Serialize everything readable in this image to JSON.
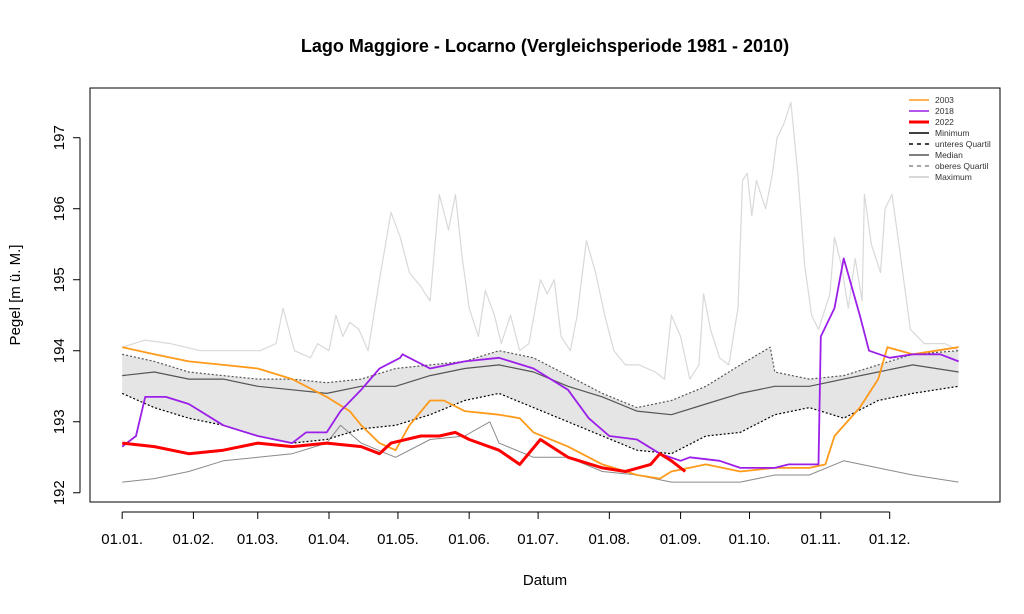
{
  "chart_data": {
    "type": "line",
    "title": "Lago Maggiore - Locarno (Vergleichsperiode 1981 - 2010)",
    "xlabel": "Datum",
    "ylabel": "Pegel [m ü. M.]",
    "x_unit": "day of year",
    "xlim": [
      -13,
      383
    ],
    "ylim": [
      191.87,
      197.7
    ],
    "yticks": [
      192,
      193,
      194,
      195,
      196,
      197
    ],
    "xticks": [
      {
        "day": 1,
        "label": "01.01."
      },
      {
        "day": 32,
        "label": "01.02."
      },
      {
        "day": 60,
        "label": "01.03."
      },
      {
        "day": 91,
        "label": "01.04."
      },
      {
        "day": 121,
        "label": "01.05."
      },
      {
        "day": 152,
        "label": "01.06."
      },
      {
        "day": 182,
        "label": "01.07."
      },
      {
        "day": 213,
        "label": "01.08."
      },
      {
        "day": 244,
        "label": "01.09."
      },
      {
        "day": 274,
        "label": "01.10."
      },
      {
        "day": 305,
        "label": "01.11."
      },
      {
        "day": 335,
        "label": "01.12."
      }
    ],
    "legend_position": "top-right",
    "legend": [
      {
        "label": "2003",
        "color": "#ff9a1a",
        "style": "solid",
        "width": 1.6
      },
      {
        "label": "2018",
        "color": "#9b1fe8",
        "style": "solid",
        "width": 1.6
      },
      {
        "label": "2022",
        "color": "#ff0000",
        "style": "solid",
        "width": 3
      },
      {
        "label": "Minimum",
        "color": "#000000",
        "style": "solid",
        "width": 1.5
      },
      {
        "label": "unteres Quartil",
        "color": "#000000",
        "style": "dashed",
        "width": 1.5
      },
      {
        "label": "Median",
        "color": "#555555",
        "style": "solid",
        "width": 1.5
      },
      {
        "label": "oberes Quartil",
        "color": "#888888",
        "style": "dashed",
        "width": 1.5
      },
      {
        "label": "Maximum",
        "color": "#cccccc",
        "style": "solid",
        "width": 1.5
      }
    ],
    "band_color": "#e5e5e5",
    "series": {
      "maximum": {
        "color": "#d9d9d9",
        "days": [
          1,
          11,
          22,
          35,
          48,
          61,
          68,
          71,
          76,
          83,
          86,
          91,
          94,
          97,
          100,
          104,
          108,
          113,
          118,
          122,
          126,
          131,
          135,
          139,
          143,
          146,
          149,
          152,
          156,
          159,
          163,
          166,
          170,
          174,
          178,
          183,
          186,
          189,
          192,
          196,
          199,
          203,
          207,
          211,
          215,
          220,
          226,
          233,
          237,
          240,
          244,
          248,
          252,
          254,
          257,
          261,
          265,
          269,
          271,
          273,
          275,
          277,
          281,
          284,
          286,
          289,
          292,
          295,
          298,
          301,
          304,
          309,
          311,
          314,
          317,
          320,
          323,
          324,
          327,
          331,
          333,
          336,
          339,
          344,
          350,
          359,
          365
        ],
        "values": [
          194.05,
          194.15,
          194.1,
          194.0,
          194.0,
          194.0,
          194.1,
          194.6,
          194.0,
          193.9,
          194.1,
          194.0,
          194.5,
          194.2,
          194.4,
          194.3,
          194.0,
          195.0,
          195.95,
          195.6,
          195.1,
          194.9,
          194.7,
          196.2,
          195.7,
          196.2,
          195.3,
          194.6,
          194.2,
          194.85,
          194.5,
          194.1,
          194.5,
          194.0,
          194.1,
          195.0,
          194.8,
          195.0,
          194.2,
          194.0,
          194.5,
          195.55,
          195.1,
          194.5,
          194.0,
          193.8,
          193.8,
          193.7,
          193.6,
          194.5,
          194.2,
          193.6,
          193.8,
          194.8,
          194.3,
          193.9,
          193.8,
          194.6,
          196.4,
          196.5,
          195.9,
          196.4,
          196.0,
          196.5,
          197.0,
          197.2,
          197.5,
          196.5,
          195.2,
          194.5,
          194.3,
          194.8,
          195.6,
          195.2,
          194.6,
          195.3,
          194.7,
          196.2,
          195.5,
          195.1,
          196.0,
          196.2,
          195.5,
          194.3,
          194.1,
          194.1,
          194.0
        ]
      },
      "upper_quartile": {
        "color": "#555555",
        "days": [
          1,
          15,
          30,
          45,
          60,
          75,
          90,
          105,
          120,
          135,
          150,
          165,
          180,
          195,
          210,
          225,
          240,
          255,
          270,
          283,
          285,
          300,
          315,
          330,
          345,
          365
        ],
        "values": [
          193.95,
          193.85,
          193.7,
          193.65,
          193.6,
          193.6,
          193.55,
          193.6,
          193.75,
          193.8,
          193.85,
          194.0,
          193.9,
          193.65,
          193.4,
          193.2,
          193.3,
          193.5,
          193.8,
          194.05,
          193.7,
          193.6,
          193.65,
          193.8,
          193.95,
          194.0
        ]
      },
      "median": {
        "color": "#555555",
        "days": [
          1,
          15,
          30,
          45,
          60,
          75,
          90,
          105,
          120,
          135,
          150,
          165,
          180,
          195,
          210,
          225,
          240,
          255,
          270,
          285,
          300,
          315,
          330,
          345,
          365
        ],
        "values": [
          193.65,
          193.7,
          193.6,
          193.6,
          193.5,
          193.45,
          193.4,
          193.5,
          193.5,
          193.65,
          193.75,
          193.8,
          193.7,
          193.5,
          193.35,
          193.15,
          193.1,
          193.25,
          193.4,
          193.5,
          193.5,
          193.6,
          193.7,
          193.8,
          193.7
        ]
      },
      "lower_quartile": {
        "color": "#000000",
        "days": [
          1,
          15,
          30,
          45,
          60,
          75,
          90,
          105,
          120,
          135,
          150,
          165,
          180,
          195,
          210,
          225,
          240,
          255,
          270,
          285,
          300,
          315,
          330,
          345,
          365
        ],
        "values": [
          193.4,
          193.2,
          193.05,
          192.95,
          192.8,
          192.7,
          192.75,
          192.9,
          192.95,
          193.1,
          193.3,
          193.4,
          193.2,
          193.0,
          192.8,
          192.6,
          192.55,
          192.8,
          192.85,
          193.1,
          193.2,
          193.05,
          193.3,
          193.4,
          193.5
        ]
      },
      "minimum": {
        "color": "#8a8a8a",
        "days": [
          1,
          15,
          30,
          45,
          60,
          75,
          90,
          96,
          105,
          120,
          135,
          150,
          161,
          165,
          180,
          195,
          210,
          225,
          240,
          255,
          270,
          285,
          300,
          315,
          330,
          345,
          365
        ],
        "values": [
          192.15,
          192.2,
          192.3,
          192.45,
          192.5,
          192.55,
          192.7,
          192.95,
          192.7,
          192.5,
          192.75,
          192.8,
          193.0,
          192.7,
          192.5,
          192.5,
          192.3,
          192.25,
          192.15,
          192.15,
          192.15,
          192.25,
          192.25,
          192.45,
          192.35,
          192.25,
          192.15
        ]
      },
      "y2003": {
        "color": "#ff9a1a",
        "days": [
          1,
          15,
          30,
          45,
          60,
          75,
          90,
          100,
          105,
          113,
          120,
          126,
          135,
          141,
          150,
          165,
          174,
          180,
          195,
          210,
          225,
          235,
          240,
          255,
          270,
          285,
          300,
          307,
          311,
          322,
          330,
          334,
          345,
          365
        ],
        "values": [
          194.05,
          193.95,
          193.85,
          193.8,
          193.75,
          193.6,
          193.35,
          193.15,
          192.95,
          192.7,
          192.6,
          192.95,
          193.3,
          193.3,
          193.15,
          193.1,
          193.05,
          192.85,
          192.65,
          192.4,
          192.25,
          192.2,
          192.3,
          192.4,
          192.3,
          192.35,
          192.35,
          192.4,
          192.8,
          193.2,
          193.6,
          194.05,
          193.95,
          194.05
        ]
      },
      "y2018": {
        "color": "#9b1fe8",
        "days": [
          1,
          7,
          11,
          20,
          30,
          45,
          60,
          75,
          81,
          90,
          96,
          105,
          113,
          122,
          123,
          135,
          150,
          165,
          180,
          195,
          204,
          213,
          225,
          235,
          244,
          248,
          261,
          270,
          285,
          291,
          304,
          305,
          311,
          315,
          322,
          326,
          335,
          345,
          357,
          365
        ],
        "values": [
          192.65,
          192.8,
          193.35,
          193.35,
          193.25,
          192.95,
          192.8,
          192.7,
          192.85,
          192.85,
          193.15,
          193.45,
          193.75,
          193.9,
          193.95,
          193.75,
          193.85,
          193.9,
          193.75,
          193.45,
          193.05,
          192.8,
          192.75,
          192.55,
          192.45,
          192.5,
          192.45,
          192.35,
          192.35,
          192.4,
          192.4,
          194.2,
          194.6,
          195.3,
          194.5,
          194.0,
          193.9,
          193.95,
          193.95,
          193.85
        ]
      },
      "y2022": {
        "color": "#ff0000",
        "days": [
          1,
          15,
          30,
          45,
          60,
          75,
          90,
          105,
          113,
          118,
          131,
          139,
          146,
          152,
          165,
          174,
          183,
          195,
          210,
          220,
          231,
          235,
          240,
          246
        ],
        "values": [
          192.7,
          192.65,
          192.55,
          192.6,
          192.7,
          192.65,
          192.7,
          192.65,
          192.55,
          192.7,
          192.8,
          192.8,
          192.85,
          192.75,
          192.6,
          192.4,
          192.75,
          192.5,
          192.35,
          192.3,
          192.4,
          192.55,
          192.45,
          192.3
        ]
      }
    }
  }
}
